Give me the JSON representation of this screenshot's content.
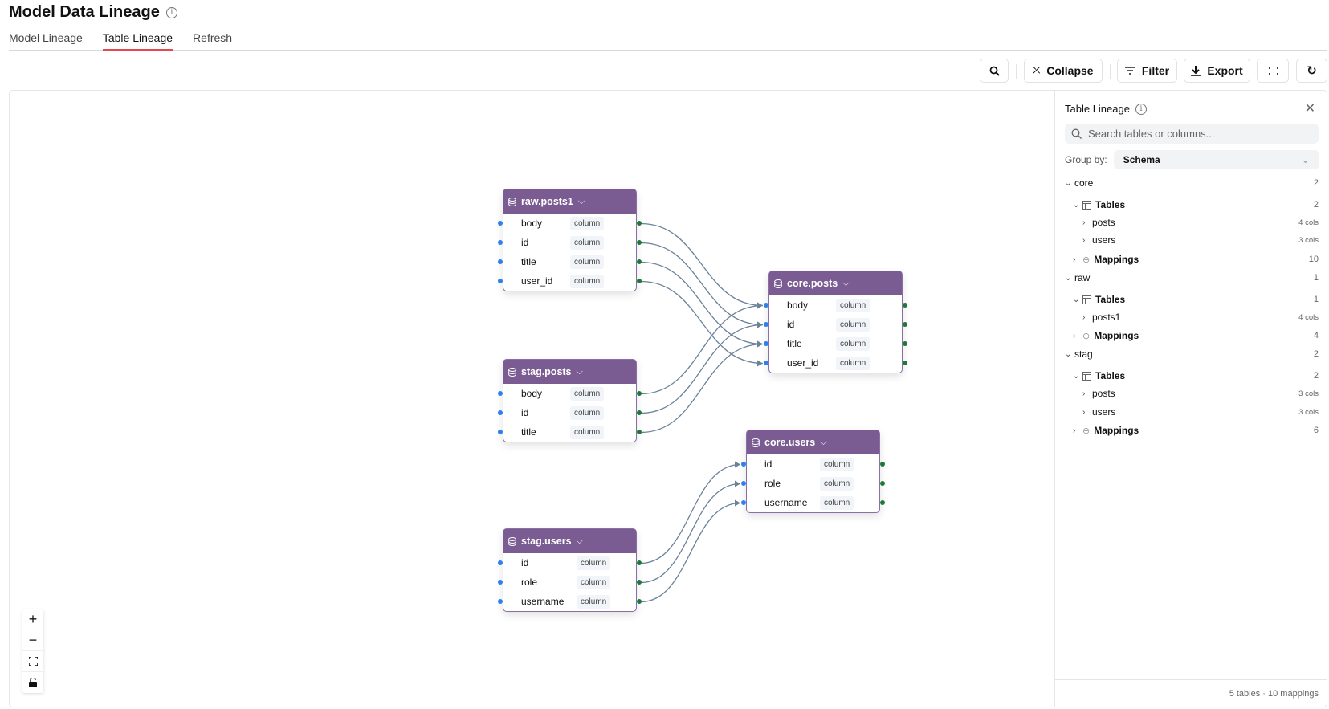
{
  "header": {
    "title": "Model Data Lineage",
    "info_icon": "info-icon"
  },
  "tabs": [
    {
      "label": "Model Lineage"
    },
    {
      "label": "Table Lineage",
      "active": true
    },
    {
      "label": "Refresh"
    }
  ],
  "toolbar": {
    "search_icon": "search-icon",
    "collapse": "Collapse",
    "filter": "Filter",
    "export": "Export",
    "fullscreen_icon": "fullscreen-icon",
    "refresh_icon": "refresh-icon"
  },
  "colors": {
    "node_header": "#7a5b92",
    "edge": "#6b8299",
    "input_handle": "#2f80ed",
    "output_handle": "#1d7a35",
    "active_tab": "#e5484d"
  },
  "nodes": [
    {
      "id": "raw.posts1",
      "columns": [
        {
          "name": "body",
          "type": "column"
        },
        {
          "name": "id",
          "type": "column"
        },
        {
          "name": "title",
          "type": "column"
        },
        {
          "name": "user_id",
          "type": "column"
        }
      ]
    },
    {
      "id": "core.posts",
      "columns": [
        {
          "name": "body",
          "type": "column"
        },
        {
          "name": "id",
          "type": "column"
        },
        {
          "name": "title",
          "type": "column"
        },
        {
          "name": "user_id",
          "type": "column"
        }
      ]
    },
    {
      "id": "stag.posts",
      "columns": [
        {
          "name": "body",
          "type": "column"
        },
        {
          "name": "id",
          "type": "column"
        },
        {
          "name": "title",
          "type": "column"
        }
      ]
    },
    {
      "id": "core.users",
      "columns": [
        {
          "name": "id",
          "type": "column"
        },
        {
          "name": "role",
          "type": "column"
        },
        {
          "name": "username",
          "type": "column"
        }
      ]
    },
    {
      "id": "stag.users",
      "columns": [
        {
          "name": "id",
          "type": "column"
        },
        {
          "name": "role",
          "type": "column"
        },
        {
          "name": "username",
          "type": "column"
        }
      ]
    }
  ],
  "edges": [
    [
      "raw.posts1",
      "body",
      "core.posts",
      "body"
    ],
    [
      "raw.posts1",
      "id",
      "core.posts",
      "id"
    ],
    [
      "raw.posts1",
      "title",
      "core.posts",
      "title"
    ],
    [
      "raw.posts1",
      "user_id",
      "core.posts",
      "user_id"
    ],
    [
      "stag.posts",
      "body",
      "core.posts",
      "body"
    ],
    [
      "stag.posts",
      "id",
      "core.posts",
      "id"
    ],
    [
      "stag.posts",
      "title",
      "core.posts",
      "title"
    ],
    [
      "stag.users",
      "id",
      "core.users",
      "id"
    ],
    [
      "stag.users",
      "role",
      "core.users",
      "role"
    ],
    [
      "stag.users",
      "username",
      "core.users",
      "username"
    ]
  ],
  "zoom_controls": [
    "zoom-in-icon",
    "zoom-out-icon",
    "fit-view-icon",
    "lock-icon"
  ],
  "panel": {
    "title": "Table Lineage",
    "search_placeholder": "Search tables or columns...",
    "group_by_label": "Group by:",
    "group_by_value": "Schema",
    "tree": [
      {
        "level": 0,
        "label": "core",
        "count": "2",
        "open": true
      },
      {
        "level": 1,
        "label": "Tables",
        "count": "2",
        "open": true,
        "icon": "table-icon"
      },
      {
        "level": 2,
        "label": "posts",
        "count": "4 cols"
      },
      {
        "level": 2,
        "label": "users",
        "count": "3 cols"
      },
      {
        "level": 1,
        "label": "Mappings",
        "count": "10",
        "icon": "link-icon"
      },
      {
        "level": 0,
        "label": "raw",
        "count": "1",
        "open": true
      },
      {
        "level": 1,
        "label": "Tables",
        "count": "1",
        "open": true,
        "icon": "table-icon"
      },
      {
        "level": 2,
        "label": "posts1",
        "count": "4 cols"
      },
      {
        "level": 1,
        "label": "Mappings",
        "count": "4",
        "icon": "link-icon"
      },
      {
        "level": 0,
        "label": "stag",
        "count": "2",
        "open": true
      },
      {
        "level": 1,
        "label": "Tables",
        "count": "2",
        "open": true,
        "icon": "table-icon"
      },
      {
        "level": 2,
        "label": "posts",
        "count": "3 cols"
      },
      {
        "level": 2,
        "label": "users",
        "count": "3 cols"
      },
      {
        "level": 1,
        "label": "Mappings",
        "count": "6",
        "icon": "link-icon"
      }
    ],
    "footer": "5 tables · 10 mappings"
  }
}
